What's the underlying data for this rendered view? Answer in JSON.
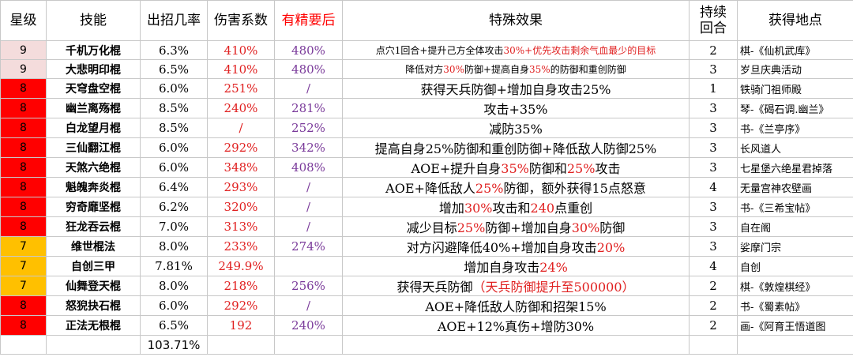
{
  "table": {
    "header": [
      "星级",
      "技能",
      "出招几率",
      "伤害系数",
      "有精要后",
      "特殊效果",
      [
        "持续",
        "回合"
      ],
      "获得地点"
    ],
    "rows": [
      [
        "9",
        "千机万化棍",
        "6.3%",
        "410%",
        "480%",
        [
          "点穴1回合+提升己方全体攻击",
          "30%+优先攻击剩余气血最少的目标"
        ],
        "2",
        "棋-《仙机武库》"
      ],
      [
        "9",
        "大悲明印棍",
        "6.5%",
        "410%",
        "480%",
        [
          "降低对方",
          "30%",
          "防御+提高自身",
          "35%",
          "的防御和重创防御"
        ],
        "3",
        "岁旦庆典活动"
      ],
      [
        "8",
        "天穹盘空棍",
        "6.0%",
        "251%",
        "/",
        [
          "获得天兵防御+增加自身攻击25%"
        ],
        "1",
        "铁骑门祖师殿"
      ],
      [
        "8",
        "幽兰离殇棍",
        "8.5%",
        "240%",
        "281%",
        [
          "攻击+35%"
        ],
        "3",
        "琴-《碣石调.幽兰》"
      ],
      [
        "8",
        "白龙望月棍",
        "8.5%",
        "/",
        "252%",
        [
          "减防35%"
        ],
        "3",
        "书-《兰亭序》"
      ],
      [
        "8",
        "三仙翻江棍",
        "6.0%",
        "292%",
        "342%",
        [
          "提高自身25%防御和重创防御+降低敌人防御25%"
        ],
        "3",
        "长风道人"
      ],
      [
        "8",
        "天煞六绝棍",
        "6.0%",
        "348%",
        "408%",
        [
          "AOE+提升自身",
          "35%",
          "防御和",
          "25%",
          "攻击"
        ],
        "3",
        "七星堡六绝星君掉落"
      ],
      [
        "8",
        "魁魄奔炎棍",
        "6.4%",
        "293%",
        "/",
        [
          "AOE+降低敌人",
          "25%",
          "防御，额外获得15点怒意"
        ],
        "4",
        "无量宫神农壁画"
      ],
      [
        "8",
        "穷奇靡坚棍",
        "6.2%",
        "320%",
        "/",
        [
          "增加",
          "30%",
          "攻击和",
          "240",
          "点重创"
        ],
        "3",
        "书-《三希宝帖》"
      ],
      [
        "8",
        "狂龙吞云棍",
        "7.0%",
        "313%",
        "/",
        [
          "减少目标",
          "25%",
          "防御+增加自身",
          "30%",
          "防御"
        ],
        "3",
        "自在阁"
      ],
      [
        "7",
        "维世棍法",
        "8.0%",
        "233%",
        "274%",
        [
          "对方闪避降低40%+增加自身攻击",
          "20%"
        ],
        "3",
        "娑摩门宗"
      ],
      [
        "7",
        "自创三甲",
        "7.81%",
        "249.9%",
        null,
        [
          "增加自身攻击",
          "24%"
        ],
        "4",
        "自创"
      ],
      [
        "7",
        "仙舞登天棍",
        "8.0%",
        "218%",
        "256%",
        [
          "获得天兵防御",
          "（天兵防御提升至500000）"
        ],
        "2",
        "棋-《敦煌棋经》"
      ],
      [
        "8",
        "怒猊抉石棍",
        "6.0%",
        "292%",
        "/",
        [
          "AOE+降低敌人防御和招架15%"
        ],
        "2",
        "书-《蜀素帖》"
      ],
      [
        "8",
        "正法无根棍",
        "6.5%",
        "192",
        "240%",
        [
          "AOE+12%真伤+增防30%"
        ],
        "2",
        "画-《阿育王悟道图"
      ]
    ],
    "footer": {
      "rate_total": "103.71%"
    }
  }
}
